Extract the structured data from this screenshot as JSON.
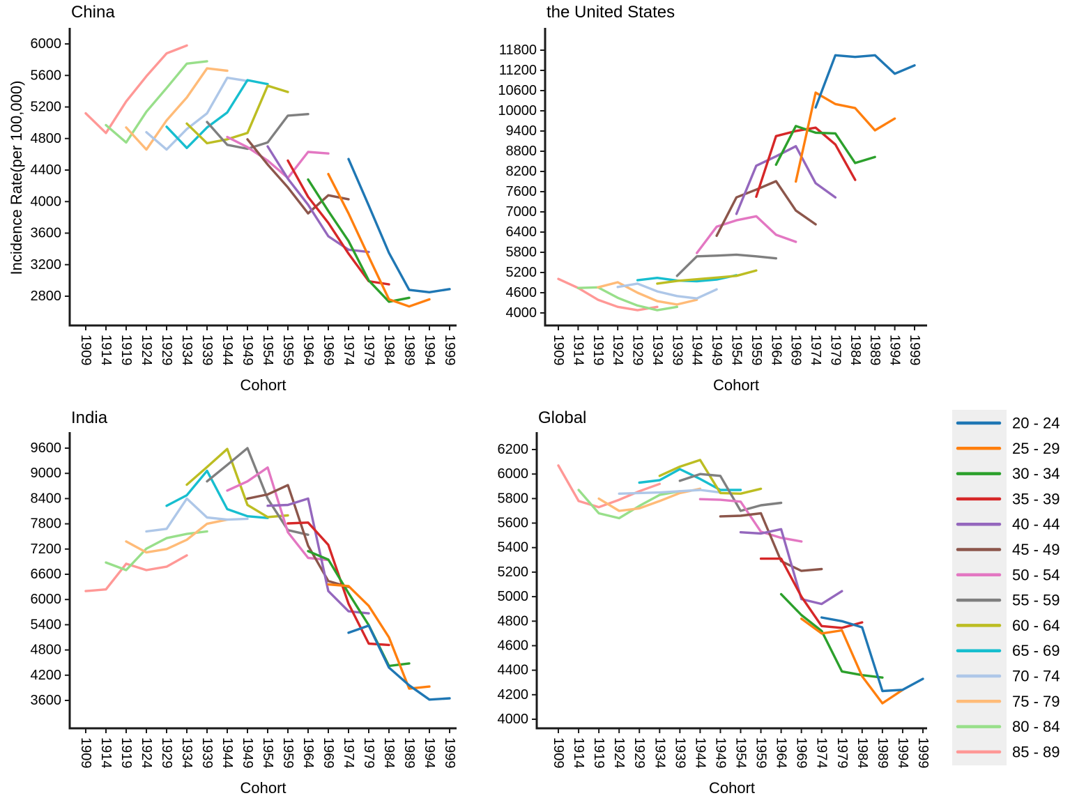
{
  "figure": {
    "ylabel": "Incidence Rate(per 100,000)",
    "xlabel": "Cohort",
    "axis_color": "#1a1a1a",
    "text_color": "#000000",
    "background": "#ffffff"
  },
  "legend": {
    "background": "#efefef",
    "entries": [
      {
        "label": "20 - 24",
        "color": "#1f77b4"
      },
      {
        "label": "25 - 29",
        "color": "#ff7f0e"
      },
      {
        "label": "30 - 34",
        "color": "#2ca02c"
      },
      {
        "label": "35 - 39",
        "color": "#d62728"
      },
      {
        "label": "40 - 44",
        "color": "#9467bd"
      },
      {
        "label": "45 - 49",
        "color": "#8c564b"
      },
      {
        "label": "50 - 54",
        "color": "#e377c2"
      },
      {
        "label": "55 - 59",
        "color": "#7f7f7f"
      },
      {
        "label": "60 - 64",
        "color": "#bcbd22"
      },
      {
        "label": "65 - 69",
        "color": "#17becf"
      },
      {
        "label": "70 - 74",
        "color": "#aec7e8"
      },
      {
        "label": "75 - 79",
        "color": "#ffbb78"
      },
      {
        "label": "80 - 84",
        "color": "#98df8a"
      },
      {
        "label": "85 - 89",
        "color": "#ff9896"
      }
    ]
  },
  "chart_data": [
    {
      "key": "china",
      "title": "China",
      "type": "line",
      "xlabel": "Cohort",
      "ylabel": "Incidence Rate(per 100,000)",
      "x_ticks": [
        1909,
        1914,
        1919,
        1924,
        1929,
        1934,
        1939,
        1944,
        1949,
        1954,
        1959,
        1964,
        1969,
        1974,
        1979,
        1984,
        1989,
        1994,
        1999
      ],
      "y_ticks": [
        2800,
        3200,
        3600,
        4000,
        4400,
        4800,
        5200,
        5600,
        6000
      ],
      "ylim": [
        2800,
        6000
      ],
      "cohort_step": 5,
      "series": [
        {
          "name": "20 - 24",
          "color": "#1f77b4",
          "start_cohort": 1974,
          "values": [
            4540,
            3950,
            3350,
            2880,
            2850,
            2890
          ]
        },
        {
          "name": "25 - 29",
          "color": "#ff7f0e",
          "start_cohort": 1969,
          "values": [
            4350,
            3850,
            3300,
            2760,
            2670,
            2760
          ]
        },
        {
          "name": "30 - 34",
          "color": "#2ca02c",
          "start_cohort": 1964,
          "values": [
            4280,
            3880,
            3500,
            3000,
            2730,
            2780
          ]
        },
        {
          "name": "35 - 39",
          "color": "#d62728",
          "start_cohort": 1959,
          "values": [
            4520,
            4060,
            3730,
            3340,
            2990,
            2950
          ]
        },
        {
          "name": "40 - 44",
          "color": "#9467bd",
          "start_cohort": 1954,
          "values": [
            4700,
            4290,
            3960,
            3560,
            3390,
            3360
          ]
        },
        {
          "name": "45 - 49",
          "color": "#8c564b",
          "start_cohort": 1949,
          "values": [
            4790,
            4470,
            4180,
            3850,
            4080,
            4030
          ]
        },
        {
          "name": "50 - 54",
          "color": "#e377c2",
          "start_cohort": 1944,
          "values": [
            4820,
            4690,
            4520,
            4300,
            4630,
            4610
          ]
        },
        {
          "name": "55 - 59",
          "color": "#7f7f7f",
          "start_cohort": 1939,
          "values": [
            5010,
            4720,
            4670,
            4750,
            5090,
            5110
          ]
        },
        {
          "name": "60 - 64",
          "color": "#bcbd22",
          "start_cohort": 1934,
          "values": [
            4990,
            4740,
            4790,
            4870,
            5470,
            5390
          ]
        },
        {
          "name": "65 - 69",
          "color": "#17becf",
          "start_cohort": 1929,
          "values": [
            4950,
            4680,
            4940,
            5130,
            5540,
            5490
          ]
        },
        {
          "name": "70 - 74",
          "color": "#aec7e8",
          "start_cohort": 1924,
          "values": [
            4880,
            4660,
            4920,
            5120,
            5570,
            5530
          ]
        },
        {
          "name": "75 - 79",
          "color": "#ffbb78",
          "start_cohort": 1919,
          "values": [
            4940,
            4660,
            5030,
            5320,
            5690,
            5660
          ]
        },
        {
          "name": "80 - 84",
          "color": "#98df8a",
          "start_cohort": 1914,
          "values": [
            4970,
            4750,
            5140,
            5440,
            5750,
            5780
          ]
        },
        {
          "name": "85 - 89",
          "color": "#ff9896",
          "start_cohort": 1909,
          "values": [
            5120,
            4870,
            5270,
            5590,
            5880,
            5980
          ]
        }
      ]
    },
    {
      "key": "us",
      "title": "the United States",
      "type": "line",
      "xlabel": "Cohort",
      "ylabel": "Incidence Rate(per 100,000)",
      "x_ticks": [
        1909,
        1914,
        1919,
        1924,
        1929,
        1934,
        1939,
        1944,
        1949,
        1954,
        1959,
        1964,
        1969,
        1974,
        1979,
        1984,
        1989,
        1994,
        1999
      ],
      "y_ticks": [
        4000,
        4600,
        5200,
        5800,
        6400,
        7000,
        7600,
        8200,
        8800,
        9400,
        10000,
        10600,
        11200,
        11800
      ],
      "ylim": [
        4000,
        11800
      ],
      "cohort_step": 5,
      "series": [
        {
          "name": "20 - 24",
          "color": "#1f77b4",
          "start_cohort": 1974,
          "values": [
            10100,
            11650,
            11600,
            11650,
            11100,
            11350
          ]
        },
        {
          "name": "25 - 29",
          "color": "#ff7f0e",
          "start_cohort": 1969,
          "values": [
            7900,
            10540,
            10200,
            10080,
            9420,
            9770
          ]
        },
        {
          "name": "30 - 34",
          "color": "#2ca02c",
          "start_cohort": 1964,
          "values": [
            8400,
            9550,
            9350,
            9330,
            8450,
            8630
          ]
        },
        {
          "name": "35 - 39",
          "color": "#d62728",
          "start_cohort": 1959,
          "values": [
            7450,
            9250,
            9400,
            9500,
            9000,
            7950
          ]
        },
        {
          "name": "40 - 44",
          "color": "#9467bd",
          "start_cohort": 1954,
          "values": [
            6940,
            8370,
            8650,
            8950,
            7850,
            7430
          ]
        },
        {
          "name": "45 - 49",
          "color": "#8c564b",
          "start_cohort": 1949,
          "values": [
            6290,
            7430,
            7660,
            7910,
            7040,
            6630
          ]
        },
        {
          "name": "50 - 54",
          "color": "#e377c2",
          "start_cohort": 1944,
          "values": [
            5780,
            6560,
            6750,
            6870,
            6320,
            6110
          ]
        },
        {
          "name": "55 - 59",
          "color": "#7f7f7f",
          "start_cohort": 1939,
          "values": [
            5100,
            5680,
            5700,
            5730,
            5680,
            5620
          ]
        },
        {
          "name": "60 - 64",
          "color": "#bcbd22",
          "start_cohort": 1934,
          "values": [
            4870,
            4950,
            5000,
            5050,
            5100,
            5260
          ]
        },
        {
          "name": "65 - 69",
          "color": "#17becf",
          "start_cohort": 1929,
          "values": [
            4970,
            5040,
            4960,
            4940,
            4990,
            5120
          ]
        },
        {
          "name": "70 - 74",
          "color": "#aec7e8",
          "start_cohort": 1924,
          "values": [
            4770,
            4870,
            4640,
            4500,
            4430,
            4700
          ]
        },
        {
          "name": "75 - 79",
          "color": "#ffbb78",
          "start_cohort": 1919,
          "values": [
            4760,
            4910,
            4600,
            4350,
            4250,
            4390
          ]
        },
        {
          "name": "80 - 84",
          "color": "#98df8a",
          "start_cohort": 1914,
          "values": [
            4740,
            4760,
            4450,
            4220,
            4080,
            4180
          ]
        },
        {
          "name": "85 - 89",
          "color": "#ff9896",
          "start_cohort": 1909,
          "values": [
            5010,
            4740,
            4390,
            4180,
            4080,
            4180
          ]
        }
      ]
    },
    {
      "key": "india",
      "title": "India",
      "type": "line",
      "xlabel": "Cohort",
      "ylabel": "Incidence Rate(per 100,000)",
      "x_ticks": [
        1909,
        1914,
        1919,
        1924,
        1929,
        1934,
        1939,
        1944,
        1949,
        1954,
        1959,
        1964,
        1969,
        1974,
        1979,
        1984,
        1989,
        1994,
        1999
      ],
      "y_ticks": [
        3600,
        4200,
        4800,
        5400,
        6000,
        6600,
        7200,
        7800,
        8400,
        9000,
        9600
      ],
      "ylim": [
        3600,
        9600
      ],
      "cohort_step": 5,
      "series": [
        {
          "name": "20 - 24",
          "color": "#1f77b4",
          "start_cohort": 1974,
          "values": [
            5210,
            5380,
            4380,
            3960,
            3620,
            3650
          ]
        },
        {
          "name": "25 - 29",
          "color": "#ff7f0e",
          "start_cohort": 1969,
          "values": [
            6360,
            6320,
            5850,
            5100,
            3880,
            3930
          ]
        },
        {
          "name": "30 - 34",
          "color": "#2ca02c",
          "start_cohort": 1964,
          "values": [
            7150,
            6950,
            6150,
            5390,
            4420,
            4480
          ]
        },
        {
          "name": "35 - 39",
          "color": "#d62728",
          "start_cohort": 1959,
          "values": [
            7810,
            7830,
            7300,
            5900,
            4950,
            4920
          ]
        },
        {
          "name": "40 - 44",
          "color": "#9467bd",
          "start_cohort": 1954,
          "values": [
            8230,
            8250,
            8400,
            6200,
            5720,
            5670
          ]
        },
        {
          "name": "45 - 49",
          "color": "#8c564b",
          "start_cohort": 1949,
          "values": [
            8400,
            8500,
            8720,
            7280,
            6440,
            6300
          ]
        },
        {
          "name": "50 - 54",
          "color": "#e377c2",
          "start_cohort": 1944,
          "values": [
            8590,
            8810,
            9140,
            7600,
            6990,
            6940
          ]
        },
        {
          "name": "55 - 59",
          "color": "#7f7f7f",
          "start_cohort": 1939,
          "values": [
            8810,
            9200,
            9600,
            8400,
            7650,
            7540
          ]
        },
        {
          "name": "60 - 64",
          "color": "#bcbd22",
          "start_cohort": 1934,
          "values": [
            8730,
            9150,
            9580,
            8250,
            7960,
            8000
          ]
        },
        {
          "name": "65 - 69",
          "color": "#17becf",
          "start_cohort": 1929,
          "values": [
            8230,
            8480,
            9060,
            8150,
            7980,
            7940
          ]
        },
        {
          "name": "70 - 74",
          "color": "#aec7e8",
          "start_cohort": 1924,
          "values": [
            7620,
            7680,
            8400,
            7950,
            7900,
            7920
          ]
        },
        {
          "name": "75 - 79",
          "color": "#ffbb78",
          "start_cohort": 1919,
          "values": [
            7380,
            7120,
            7200,
            7420,
            7800,
            7900
          ]
        },
        {
          "name": "80 - 84",
          "color": "#98df8a",
          "start_cohort": 1914,
          "values": [
            6880,
            6700,
            7210,
            7460,
            7560,
            7620
          ]
        },
        {
          "name": "85 - 89",
          "color": "#ff9896",
          "start_cohort": 1909,
          "values": [
            6200,
            6240,
            6850,
            6700,
            6780,
            7050
          ]
        }
      ]
    },
    {
      "key": "global",
      "title": "Global",
      "type": "line",
      "xlabel": "Cohort",
      "ylabel": "Incidence Rate(per 100,000)",
      "x_ticks": [
        1909,
        1914,
        1919,
        1924,
        1929,
        1934,
        1939,
        1944,
        1949,
        1954,
        1959,
        1964,
        1969,
        1974,
        1979,
        1984,
        1989,
        1994,
        1999
      ],
      "y_ticks": [
        4000,
        4200,
        4400,
        4600,
        4800,
        5000,
        5200,
        5400,
        5600,
        5800,
        6000,
        6200
      ],
      "ylim": [
        4000,
        6200
      ],
      "cohort_step": 5,
      "series": [
        {
          "name": "20 - 24",
          "color": "#1f77b4",
          "start_cohort": 1974,
          "values": [
            4830,
            4800,
            4750,
            4230,
            4240,
            4330
          ]
        },
        {
          "name": "25 - 29",
          "color": "#ff7f0e",
          "start_cohort": 1969,
          "values": [
            4820,
            4700,
            4725,
            4350,
            4130,
            4240
          ]
        },
        {
          "name": "30 - 34",
          "color": "#2ca02c",
          "start_cohort": 1964,
          "values": [
            5020,
            4850,
            4720,
            4390,
            4360,
            4340
          ]
        },
        {
          "name": "35 - 39",
          "color": "#d62728",
          "start_cohort": 1959,
          "values": [
            5310,
            5310,
            5000,
            4760,
            4745,
            4790
          ]
        },
        {
          "name": "40 - 44",
          "color": "#9467bd",
          "start_cohort": 1954,
          "values": [
            5525,
            5515,
            5550,
            4980,
            4940,
            5045
          ]
        },
        {
          "name": "45 - 49",
          "color": "#8c564b",
          "start_cohort": 1949,
          "values": [
            5655,
            5660,
            5680,
            5290,
            5210,
            5225
          ]
        },
        {
          "name": "50 - 54",
          "color": "#e377c2",
          "start_cohort": 1944,
          "values": [
            5795,
            5790,
            5775,
            5530,
            5480,
            5450
          ]
        },
        {
          "name": "55 - 59",
          "color": "#7f7f7f",
          "start_cohort": 1939,
          "values": [
            5945,
            6000,
            5985,
            5700,
            5745,
            5765
          ]
        },
        {
          "name": "60 - 64",
          "color": "#bcbd22",
          "start_cohort": 1934,
          "values": [
            5985,
            6060,
            6115,
            5845,
            5840,
            5880
          ]
        },
        {
          "name": "65 - 69",
          "color": "#17becf",
          "start_cohort": 1929,
          "values": [
            5930,
            5950,
            6040,
            5960,
            5870,
            5870
          ]
        },
        {
          "name": "70 - 74",
          "color": "#aec7e8",
          "start_cohort": 1924,
          "values": [
            5840,
            5845,
            5850,
            5860,
            5870,
            5850
          ]
        },
        {
          "name": "75 - 79",
          "color": "#ffbb78",
          "start_cohort": 1919,
          "values": [
            5800,
            5700,
            5720,
            5780,
            5845,
            5880
          ]
        },
        {
          "name": "80 - 84",
          "color": "#98df8a",
          "start_cohort": 1914,
          "values": [
            5870,
            5680,
            5640,
            5740,
            5830,
            5860
          ]
        },
        {
          "name": "85 - 89",
          "color": "#ff9896",
          "start_cohort": 1909,
          "values": [
            6070,
            5780,
            5730,
            5790,
            5860,
            5920
          ]
        }
      ]
    }
  ]
}
